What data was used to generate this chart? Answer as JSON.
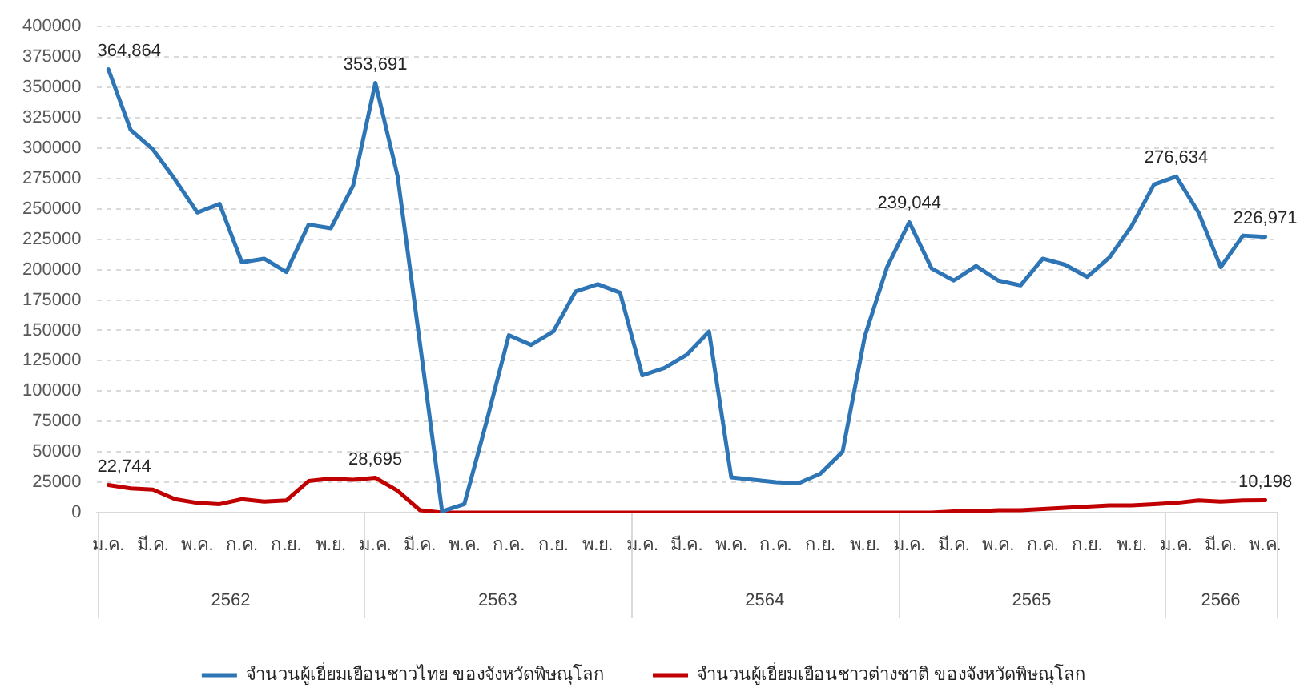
{
  "chart_data": {
    "type": "line",
    "categories": [
      "ม.ค.",
      null,
      "มี.ค.",
      null,
      "พ.ค.",
      null,
      "ก.ค.",
      null,
      "ก.ย.",
      null,
      "พ.ย.",
      null,
      "ม.ค.",
      null,
      "มี.ค.",
      null,
      "พ.ค.",
      null,
      "ก.ค.",
      null,
      "ก.ย.",
      null,
      "พ.ย.",
      null,
      "ม.ค.",
      null,
      "มี.ค.",
      null,
      "พ.ค.",
      null,
      "ก.ค.",
      null,
      "ก.ย.",
      null,
      "พ.ย.",
      null,
      "ม.ค.",
      null,
      "มี.ค.",
      null,
      "พ.ค.",
      null,
      "ก.ค.",
      null,
      "ก.ย.",
      null,
      "พ.ย.",
      null,
      "ม.ค.",
      null,
      "มี.ค.",
      null,
      "พ.ค."
    ],
    "series": [
      {
        "name": "จำนวนผู้เยี่ยมเยือนชาวไทย ของจังหวัดพิษณุโลก",
        "color": "#2e75b6",
        "values": [
          364864,
          315000,
          299000,
          274000,
          247000,
          254000,
          206000,
          209000,
          198000,
          237000,
          234000,
          269000,
          353691,
          277000,
          140000,
          1000,
          7000,
          75000,
          146000,
          138000,
          149000,
          182000,
          188000,
          181000,
          113000,
          119000,
          130000,
          149000,
          29000,
          27000,
          25000,
          24000,
          32000,
          50000,
          145000,
          202000,
          239044,
          201000,
          191000,
          203000,
          191000,
          187000,
          209000,
          204000,
          194000,
          210000,
          236000,
          270000,
          276634,
          247000,
          202000,
          228000,
          226971
        ],
        "value_labels": [
          "364,864",
          null,
          null,
          null,
          null,
          null,
          null,
          null,
          null,
          null,
          null,
          null,
          "353,691",
          null,
          null,
          null,
          null,
          null,
          null,
          null,
          null,
          null,
          null,
          null,
          null,
          null,
          null,
          null,
          null,
          null,
          null,
          null,
          null,
          null,
          null,
          null,
          "239,044",
          null,
          null,
          null,
          null,
          null,
          null,
          null,
          null,
          null,
          null,
          null,
          "276,634",
          null,
          null,
          null,
          "226,971"
        ]
      },
      {
        "name": "จำนวนผู้เยี่ยมเยือนชาวต่างชาติ ของจังหวัดพิษณุโลก",
        "color": "#c00000",
        "values": [
          22744,
          20000,
          19000,
          11000,
          8000,
          7000,
          11000,
          9000,
          10000,
          26000,
          28000,
          27000,
          28695,
          18000,
          2000,
          0,
          0,
          0,
          0,
          0,
          0,
          0,
          0,
          0,
          0,
          0,
          0,
          0,
          0,
          0,
          0,
          0,
          0,
          0,
          0,
          0,
          0,
          0,
          1000,
          1000,
          2000,
          2000,
          3000,
          4000,
          5000,
          6000,
          6000,
          7000,
          8000,
          10000,
          9000,
          10000,
          10198
        ],
        "value_labels": [
          "22,744",
          null,
          null,
          null,
          null,
          null,
          null,
          null,
          null,
          null,
          null,
          null,
          "28,695",
          null,
          null,
          null,
          null,
          null,
          null,
          null,
          null,
          null,
          null,
          null,
          null,
          null,
          null,
          null,
          null,
          null,
          null,
          null,
          null,
          null,
          null,
          null,
          null,
          null,
          null,
          null,
          null,
          null,
          null,
          null,
          null,
          null,
          null,
          null,
          null,
          null,
          null,
          null,
          "10,198"
        ]
      }
    ],
    "ylim": [
      0,
      400000
    ],
    "yticks": [
      0,
      25000,
      50000,
      75000,
      100000,
      125000,
      150000,
      175000,
      200000,
      225000,
      250000,
      275000,
      300000,
      325000,
      350000,
      375000,
      400000
    ],
    "grid": "y",
    "legend": "bottom",
    "line_style": "solid",
    "annotations": [
      "2562",
      "2563",
      "2564",
      "2565",
      "2566"
    ]
  }
}
